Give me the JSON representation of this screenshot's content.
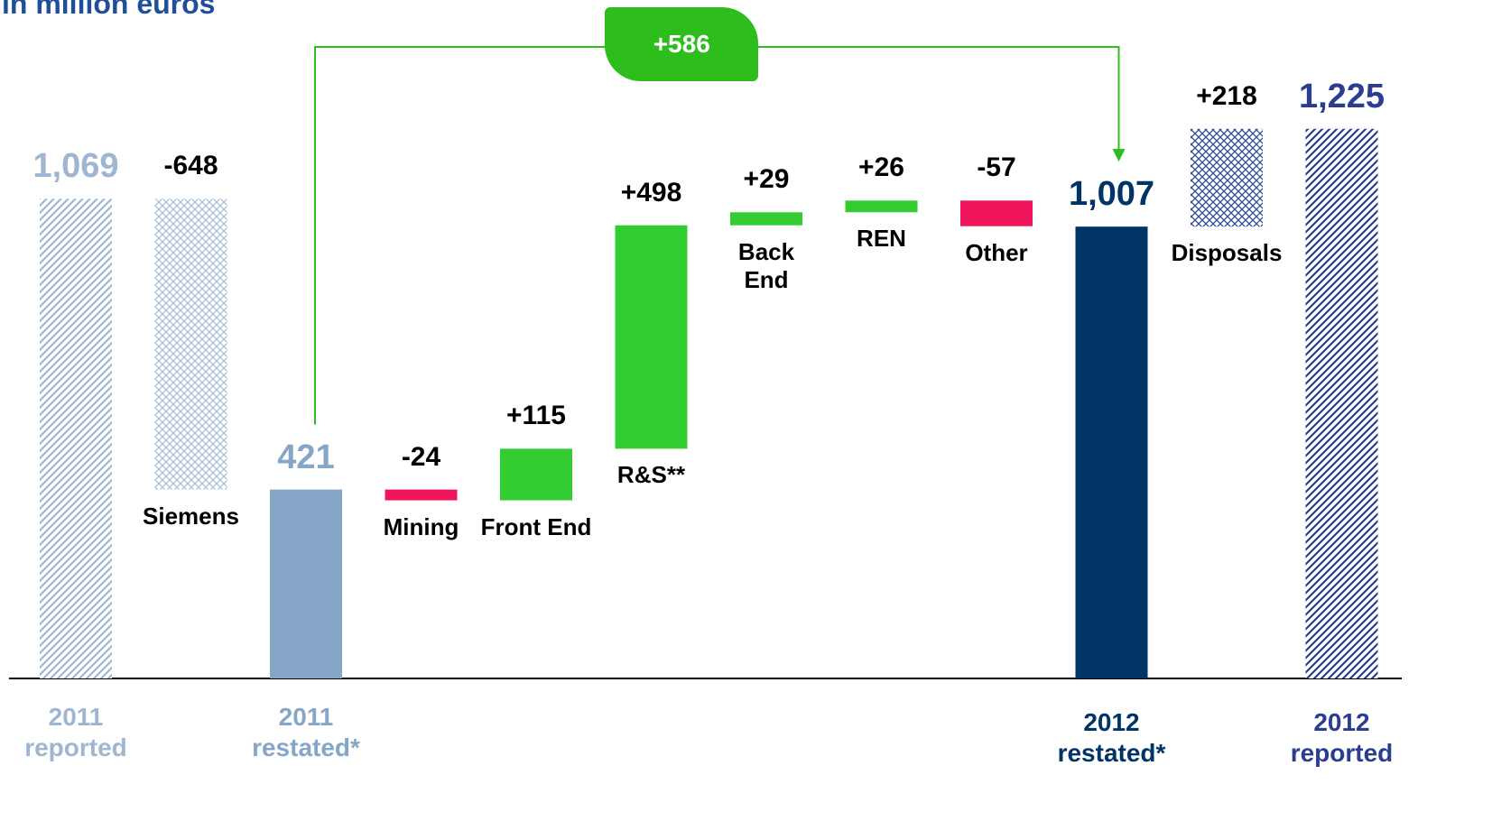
{
  "chart_data": {
    "type": "waterfall",
    "title": "in million euros",
    "annotation": "+586",
    "categories": [
      "2011 reported",
      "Siemens",
      "2011 restated*",
      "Mining",
      "Front End",
      "R&S**",
      "Back End",
      "REN",
      "Other",
      "2012 restated*",
      "Disposals",
      "2012 reported"
    ],
    "values": [
      1069,
      -648,
      421,
      -24,
      115,
      498,
      29,
      26,
      -57,
      1007,
      218,
      1225
    ],
    "value_labels": [
      "1,069",
      "-648",
      "421",
      "-24",
      "+115",
      "+498",
      "+29",
      "+26",
      "-57",
      "1,007",
      "+218",
      "1,225"
    ],
    "measures": [
      "total",
      "relative",
      "total",
      "relative",
      "relative",
      "relative",
      "relative",
      "relative",
      "relative",
      "total",
      "relative",
      "total"
    ],
    "colors": [
      "#9fb6d2",
      "#a9bfd6",
      "#86a6c8",
      "#f0145a",
      "#33cc33",
      "#33cc33",
      "#33cc33",
      "#33cc33",
      "#f0145a",
      "#003366",
      "#2e4f8f",
      "#2b3d8f"
    ],
    "patterns": [
      "diagonal",
      "cross",
      "solid",
      "solid",
      "solid",
      "solid",
      "solid",
      "solid",
      "solid",
      "solid",
      "cross",
      "diagonal"
    ],
    "ylim": [
      0,
      1500
    ]
  }
}
